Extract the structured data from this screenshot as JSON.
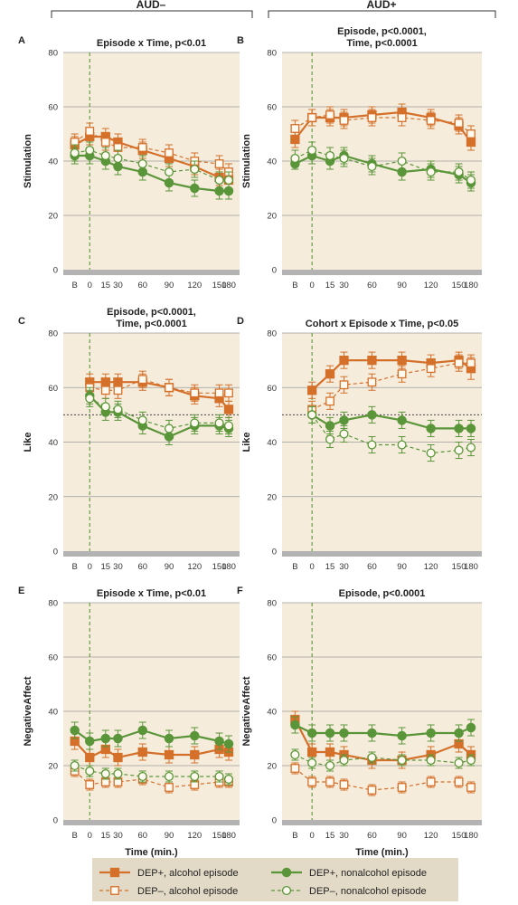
{
  "headers": {
    "left": "AUD–",
    "right": "AUD+"
  },
  "colors": {
    "alcohol": "#d4702a",
    "nonalcohol": "#5a9639",
    "panel_bg": "#f5ecdc",
    "bracket": "#333333"
  },
  "legend": [
    {
      "label": "DEP+, alcohol episode",
      "color": "#d4702a",
      "filled": true,
      "dashed": false,
      "marker": "square"
    },
    {
      "label": "DEP+, nonalcohol episode",
      "color": "#5a9639",
      "filled": true,
      "dashed": false,
      "marker": "circle"
    },
    {
      "label": "DEP–, alcohol episode",
      "color": "#d4702a",
      "filled": false,
      "dashed": true,
      "marker": "square"
    },
    {
      "label": "DEP–, nonalcohol episode",
      "color": "#5a9639",
      "filled": false,
      "dashed": true,
      "marker": "circle"
    }
  ],
  "chart_data": [
    {
      "type": "line",
      "panel": "A",
      "cohort": "AUD–",
      "title": [
        "Episode x Time, p<0.01"
      ],
      "ylabel": "Stimulation",
      "xlabel": "",
      "x_ticks": [
        "B",
        "0",
        "15",
        "30",
        "60",
        "90",
        "120",
        "150",
        "180"
      ],
      "ylim": [
        0,
        80
      ],
      "y_ticks": [
        0,
        20,
        40,
        60,
        80
      ],
      "reference_line": null,
      "series": [
        {
          "name": "DEP+, alcohol episode",
          "values": [
            46,
            49,
            49,
            47,
            44,
            41,
            38,
            34,
            33
          ],
          "err": [
            3,
            3,
            3,
            3,
            3,
            3,
            3,
            3,
            3
          ]
        },
        {
          "name": "DEP–, alcohol episode",
          "values": [
            47,
            51,
            47,
            45,
            45,
            43,
            40,
            39,
            36
          ],
          "err": [
            3,
            3,
            3,
            3,
            3,
            3,
            3,
            3,
            3
          ]
        },
        {
          "name": "DEP+, nonalcohol episode",
          "values": [
            42,
            42,
            40,
            38,
            36,
            32,
            30,
            29,
            29
          ],
          "err": [
            3,
            3,
            3,
            3,
            3,
            3,
            3,
            3,
            3
          ]
        },
        {
          "name": "DEP–, nonalcohol episode",
          "values": [
            43,
            44,
            42,
            41,
            39,
            36,
            37,
            33,
            33
          ],
          "err": [
            3,
            3,
            3,
            3,
            3,
            3,
            3,
            3,
            3
          ]
        }
      ]
    },
    {
      "type": "line",
      "panel": "B",
      "cohort": "AUD+",
      "title": [
        "Episode, p<0.0001,",
        "Time, p<0.0001"
      ],
      "ylabel": "Stimulation",
      "xlabel": "",
      "x_ticks": [
        "B",
        "0",
        "15",
        "30",
        "60",
        "90",
        "120",
        "150",
        "180"
      ],
      "ylim": [
        0,
        80
      ],
      "y_ticks": [
        0,
        20,
        40,
        60,
        80
      ],
      "reference_line": null,
      "series": [
        {
          "name": "DEP+, alcohol episode",
          "values": [
            48,
            56,
            56,
            56,
            57,
            58,
            56,
            53,
            47
          ],
          "err": [
            3,
            3,
            3,
            3,
            3,
            3,
            3,
            3,
            3
          ]
        },
        {
          "name": "DEP–, alcohol episode",
          "values": [
            52,
            56,
            57,
            55,
            56,
            56,
            55,
            54,
            50
          ],
          "err": [
            3,
            3,
            3,
            3,
            3,
            3,
            3,
            3,
            3
          ]
        },
        {
          "name": "DEP+, nonalcohol episode",
          "values": [
            39,
            42,
            40,
            42,
            39,
            36,
            37,
            35,
            32
          ],
          "err": [
            2,
            3,
            3,
            3,
            3,
            3,
            3,
            3,
            3
          ]
        },
        {
          "name": "DEP–, nonalcohol episode",
          "values": [
            41,
            44,
            42,
            41,
            38,
            40,
            36,
            36,
            33
          ],
          "err": [
            3,
            3,
            3,
            3,
            3,
            3,
            3,
            3,
            3
          ]
        }
      ]
    },
    {
      "type": "line",
      "panel": "C",
      "cohort": "AUD–",
      "title": [
        "Episode, p<0.0001,",
        "Time, p<0.0001"
      ],
      "ylabel": "Like",
      "xlabel": "",
      "x_ticks": [
        "B",
        "0",
        "15",
        "30",
        "60",
        "90",
        "120",
        "150",
        "180"
      ],
      "ylim": [
        0,
        80
      ],
      "y_ticks": [
        0,
        20,
        40,
        60,
        80
      ],
      "reference_line": 50,
      "series": [
        {
          "name": "DEP+, alcohol episode",
          "values": [
            null,
            62,
            62,
            62,
            62,
            60,
            57,
            56,
            52
          ],
          "err": [
            null,
            3,
            3,
            3,
            3,
            3,
            3,
            3,
            3
          ]
        },
        {
          "name": "DEP–, alcohol episode",
          "values": [
            null,
            60,
            59,
            59,
            63,
            60,
            58,
            58,
            58
          ],
          "err": [
            null,
            3,
            3,
            3,
            3,
            3,
            3,
            3,
            3
          ]
        },
        {
          "name": "DEP+, nonalcohol episode",
          "values": [
            null,
            57,
            51,
            51,
            46,
            42,
            46,
            46,
            45
          ],
          "err": [
            null,
            3,
            3,
            3,
            3,
            3,
            3,
            3,
            3
          ]
        },
        {
          "name": "DEP–, nonalcohol episode",
          "values": [
            null,
            56,
            53,
            52,
            48,
            45,
            47,
            47,
            46
          ],
          "err": [
            null,
            3,
            3,
            3,
            3,
            3,
            3,
            3,
            3
          ]
        }
      ]
    },
    {
      "type": "line",
      "panel": "D",
      "cohort": "AUD+",
      "title": [
        "Cohort x Episode x Time, p<0.05"
      ],
      "ylabel": "Like",
      "xlabel": "",
      "x_ticks": [
        "B",
        "0",
        "15",
        "30",
        "60",
        "90",
        "120",
        "150",
        "180"
      ],
      "ylim": [
        0,
        80
      ],
      "y_ticks": [
        0,
        20,
        40,
        60,
        80
      ],
      "reference_line": 50,
      "series": [
        {
          "name": "DEP+, alcohol episode",
          "values": [
            null,
            59,
            65,
            70,
            70,
            70,
            69,
            70,
            67
          ],
          "err": [
            null,
            3,
            3,
            3,
            3,
            3,
            3,
            3,
            4
          ]
        },
        {
          "name": "DEP–, alcohol episode",
          "values": [
            null,
            52,
            55,
            61,
            62,
            65,
            67,
            69,
            69
          ],
          "err": [
            null,
            3,
            3,
            3,
            3,
            3,
            3,
            3,
            3
          ]
        },
        {
          "name": "DEP+, nonalcohol episode",
          "values": [
            null,
            50,
            46,
            48,
            50,
            48,
            45,
            45,
            45
          ],
          "err": [
            null,
            3,
            3,
            3,
            3,
            3,
            3,
            3,
            3
          ]
        },
        {
          "name": "DEP–, nonalcohol episode",
          "values": [
            null,
            50,
            41,
            43,
            39,
            39,
            36,
            37,
            38
          ],
          "err": [
            null,
            3,
            3,
            3,
            3,
            3,
            3,
            3,
            3
          ]
        }
      ]
    },
    {
      "type": "line",
      "panel": "E",
      "cohort": "AUD–",
      "title": [
        "Episode x Time, p<0.01"
      ],
      "ylabel": "NegativeAffect",
      "xlabel": "Time (min.)",
      "x_ticks": [
        "B",
        "0",
        "15",
        "30",
        "60",
        "90",
        "120",
        "150",
        "180"
      ],
      "ylim": [
        0,
        80
      ],
      "y_ticks": [
        0,
        20,
        40,
        60,
        80
      ],
      "reference_line": null,
      "series": [
        {
          "name": "DEP+, alcohol episode",
          "values": [
            29,
            23,
            26,
            23,
            25,
            24,
            24,
            26,
            25
          ],
          "err": [
            3,
            3,
            3,
            3,
            3,
            3,
            3,
            3,
            3
          ]
        },
        {
          "name": "DEP–, alcohol episode",
          "values": [
            18,
            13,
            14,
            14,
            15,
            12,
            13,
            14,
            14
          ],
          "err": [
            2,
            2,
            2,
            2,
            2,
            2,
            2,
            2,
            2
          ]
        },
        {
          "name": "DEP+, nonalcohol episode",
          "values": [
            33,
            29,
            30,
            30,
            33,
            30,
            31,
            29,
            28
          ],
          "err": [
            3,
            3,
            3,
            3,
            3,
            3,
            3,
            3,
            3
          ]
        },
        {
          "name": "DEP–, nonalcohol episode",
          "values": [
            20,
            18,
            17,
            17,
            16,
            16,
            16,
            16,
            15
          ],
          "err": [
            2,
            2,
            2,
            2,
            2,
            2,
            2,
            2,
            2
          ]
        }
      ]
    },
    {
      "type": "line",
      "panel": "F",
      "cohort": "AUD+",
      "title": [
        "Episode, p<0.0001"
      ],
      "ylabel": "NegativeAffect",
      "xlabel": "Time (min.)",
      "x_ticks": [
        "B",
        "0",
        "15",
        "30",
        "60",
        "90",
        "120",
        "150",
        "180"
      ],
      "ylim": [
        0,
        80
      ],
      "y_ticks": [
        0,
        20,
        40,
        60,
        80
      ],
      "reference_line": null,
      "series": [
        {
          "name": "DEP+, alcohol episode",
          "values": [
            37,
            25,
            25,
            24,
            22,
            22,
            24,
            28,
            24
          ],
          "err": [
            3,
            3,
            3,
            3,
            3,
            3,
            3,
            3,
            3
          ]
        },
        {
          "name": "DEP–, alcohol episode",
          "values": [
            19,
            14,
            14,
            13,
            11,
            12,
            14,
            14,
            12
          ],
          "err": [
            2,
            2,
            2,
            2,
            2,
            2,
            2,
            2,
            2
          ]
        },
        {
          "name": "DEP+, nonalcohol episode",
          "values": [
            35,
            32,
            32,
            32,
            32,
            31,
            32,
            32,
            34
          ],
          "err": [
            3,
            3,
            3,
            3,
            3,
            3,
            3,
            3,
            3
          ]
        },
        {
          "name": "DEP–, nonalcohol episode",
          "values": [
            24,
            21,
            20,
            22,
            23,
            22,
            22,
            21,
            22
          ],
          "err": [
            2,
            2,
            2,
            2,
            2,
            2,
            2,
            2,
            2
          ]
        }
      ]
    }
  ]
}
